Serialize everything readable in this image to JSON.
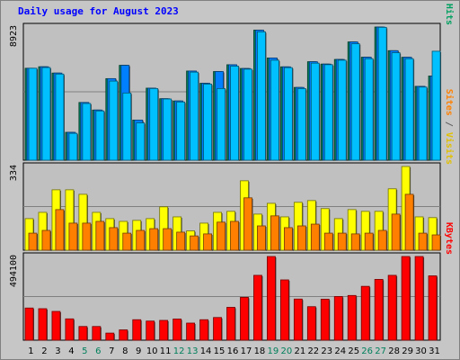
{
  "chart_data": {
    "type": "bar",
    "title": "Daily usage for August 2023",
    "categories": [
      "1",
      "2",
      "3",
      "4",
      "5",
      "6",
      "7",
      "8",
      "9",
      "10",
      "11",
      "12",
      "13",
      "14",
      "15",
      "16",
      "17",
      "18",
      "19",
      "20",
      "21",
      "22",
      "23",
      "24",
      "25",
      "26",
      "27",
      "28",
      "29",
      "30",
      "31"
    ],
    "weekend_days": [
      5,
      6,
      12,
      13,
      19,
      20,
      26,
      27
    ],
    "panels": [
      {
        "name": "traffic",
        "ylabel": "Pages / Files / Hits",
        "ylabel_parts": [
          {
            "text": "Pages",
            "color": "#00c0ff"
          },
          {
            "text": " / ",
            "color": "#606060"
          },
          {
            "text": "Files",
            "color": "#0080ff"
          },
          {
            "text": " / ",
            "color": "#606060"
          },
          {
            "text": "Hits",
            "color": "#00a060"
          }
        ],
        "max_label": "8923",
        "ylim": [
          0,
          8923
        ],
        "series": [
          {
            "name": "Hits",
            "color": "#00805c",
            "values": [
              6159,
              6260,
              5837,
              1868,
              3867,
              3361,
              5464,
              6355,
              2689,
              4826,
              4119,
              3969,
              5973,
              5152,
              5938,
              6395,
              6144,
              8712,
              6847,
              6254,
              4874,
              6597,
              6440,
              6750,
              7922,
              6899,
              8923,
              7338,
              6894,
              4948,
              5640
            ]
          },
          {
            "name": "Files",
            "color": "#0080ff",
            "values": [
              6159,
              6260,
              5837,
              1868,
              3867,
              3361,
              5464,
              6355,
              2689,
              4826,
              4119,
              3969,
              5973,
              5152,
              5938,
              6395,
              6144,
              8712,
              6847,
              6254,
              4874,
              6597,
              6440,
              6750,
              7922,
              6899,
              8923,
              7338,
              6894,
              4948,
              5640
            ]
          },
          {
            "name": "Pages",
            "color": "#00c0ff",
            "values": [
              6159,
              6208,
              5770,
              1800,
              3800,
              3300,
              5300,
              4500,
              2500,
              4800,
              4100,
              3900,
              5900,
              5100,
              4800,
              6300,
              6100,
              8600,
              6700,
              6200,
              4800,
              6500,
              6400,
              6700,
              7800,
              6800,
              8900,
              7200,
              6800,
              4900,
              7300
            ]
          }
        ]
      },
      {
        "name": "visitors",
        "ylabel": "Sites / Visits",
        "ylabel_parts": [
          {
            "text": "Sites",
            "color": "#ff8000"
          },
          {
            "text": " / ",
            "color": "#606060"
          },
          {
            "text": "Visits",
            "color": "#e0c000"
          }
        ],
        "max_label": "334",
        "ylim": [
          0,
          334
        ],
        "series": [
          {
            "name": "Visits",
            "color": "#ffff00",
            "values": [
              126,
              151,
              241,
              241,
              223,
              151,
              126,
              115,
              119,
              126,
              173,
              133,
              77,
              108,
              151,
              155,
              277,
              144,
              187,
              133,
              191,
              198,
              166,
              126,
              162,
              155,
              155,
              245,
              334,
              133,
              130
            ]
          },
          {
            "name": "Sites",
            "color": "#ff8000",
            "values": [
              68,
              79,
              162,
              108,
              108,
              115,
              90,
              68,
              79,
              86,
              86,
              72,
              57,
              65,
              112,
              115,
              209,
              97,
              137,
              90,
              97,
              104,
              68,
              68,
              65,
              68,
              79,
              144,
              223,
              68,
              61
            ]
          }
        ]
      },
      {
        "name": "bytes",
        "ylabel": "KBytes",
        "ylabel_parts": [
          {
            "text": "KBytes",
            "color": "#ff0000"
          }
        ],
        "max_label": "494100",
        "ylim": [
          0,
          494100
        ],
        "series": [
          {
            "name": "KBytes",
            "color": "#ff0000",
            "values": [
              190000,
              186000,
              170000,
              126000,
              81000,
              81000,
              42000,
              61000,
              121000,
              113000,
              117000,
              125000,
              101000,
              121000,
              134000,
              194000,
              253000,
              383000,
              494100,
              356000,
              243000,
              198000,
              242000,
              258000,
              264000,
              318000,
              359000,
              383000,
              494100,
              494100,
              380000
            ]
          }
        ]
      }
    ]
  }
}
